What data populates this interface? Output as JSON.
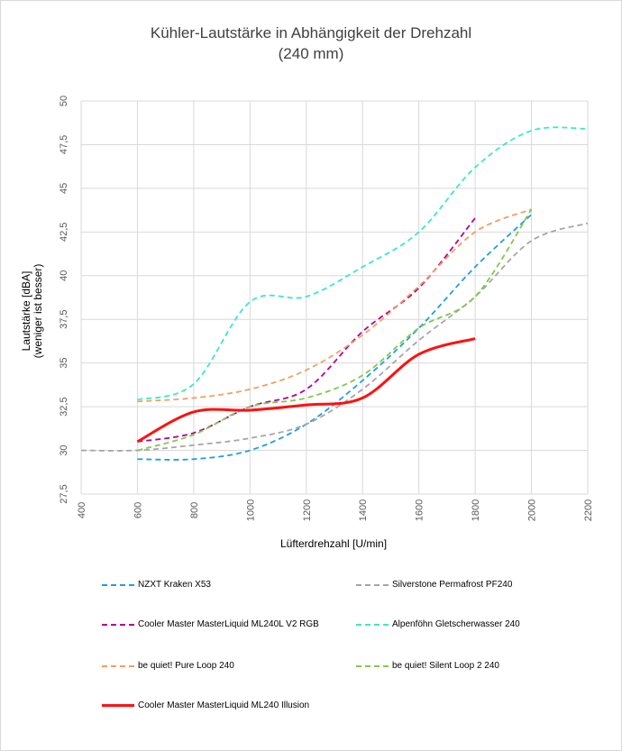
{
  "chart_data": {
    "type": "line",
    "title": "Kühler-Lautstärke in Abhängigkeit der Drehzahl",
    "subtitle": "(240 mm)",
    "xlabel": "Lüfterdrehzahl [U/min]",
    "ylabel": "Lautstärke [dBA]",
    "ylabel2": "(weniger ist besser)",
    "xlim": [
      400,
      2200
    ],
    "ylim": [
      27.5,
      50
    ],
    "xticks": [
      "400",
      "600",
      "800",
      "1000",
      "1200",
      "1400",
      "1600",
      "1800",
      "2000",
      "2200"
    ],
    "yticks": [
      "27,5",
      "30",
      "32,5",
      "35",
      "37,5",
      "40",
      "42,5",
      "45",
      "47,5",
      "50"
    ],
    "series": [
      {
        "name": "NZXT Kraken X53",
        "color": "#1ea0dc",
        "style": "dashed",
        "x": [
          600,
          800,
          1000,
          1200,
          1400,
          1600,
          1800,
          2000
        ],
        "y": [
          29.5,
          29.5,
          30.0,
          31.5,
          34.0,
          37.0,
          40.5,
          43.5
        ]
      },
      {
        "name": "Silverstone Permafrost PF240",
        "color": "#a6a6a6",
        "style": "dashed",
        "x": [
          400,
          600,
          800,
          1000,
          1200,
          1400,
          1600,
          1800,
          2000,
          2200
        ],
        "y": [
          30.0,
          30.0,
          30.3,
          30.7,
          31.5,
          33.5,
          36.3,
          38.8,
          42.0,
          43.0
        ]
      },
      {
        "name": "Cooler Master MasterLiquid ML240L V2 RGB",
        "color": "#b40096",
        "style": "dashed",
        "x": [
          600,
          800,
          1000,
          1200,
          1400,
          1600,
          1800
        ],
        "y": [
          30.5,
          31.0,
          32.5,
          33.5,
          36.8,
          39.3,
          43.3
        ]
      },
      {
        "name": "Alpenföhn Gletscherwasser 240",
        "color": "#3ce8c8",
        "style": "dashed",
        "x": [
          600,
          800,
          1000,
          1200,
          1400,
          1600,
          1800,
          2000,
          2200
        ],
        "y": [
          32.9,
          33.8,
          38.5,
          38.8,
          40.5,
          42.5,
          46.2,
          48.3,
          48.4
        ]
      },
      {
        "name": "be quiet! Pure Loop 240",
        "color": "#f0a064",
        "style": "dashed",
        "x": [
          600,
          800,
          1000,
          1200,
          1400,
          1600,
          1800,
          2000
        ],
        "y": [
          32.8,
          33.0,
          33.5,
          34.6,
          36.6,
          39.4,
          42.5,
          43.8
        ]
      },
      {
        "name": "be quiet! Silent Loop 2 240",
        "color": "#82c850",
        "style": "dashed",
        "x": [
          600,
          800,
          1000,
          1200,
          1400,
          1600,
          1800,
          2000
        ],
        "y": [
          30.0,
          30.9,
          32.5,
          33.0,
          34.3,
          37.0,
          38.8,
          43.8
        ]
      },
      {
        "name": "Cooler Master MasterLiquid ML240 Illusion",
        "color": "#ff1010",
        "style": "solid",
        "x": [
          600,
          800,
          1000,
          1200,
          1400,
          1600,
          1800
        ],
        "y": [
          30.5,
          32.2,
          32.3,
          32.6,
          33.0,
          35.5,
          36.4
        ]
      }
    ]
  }
}
